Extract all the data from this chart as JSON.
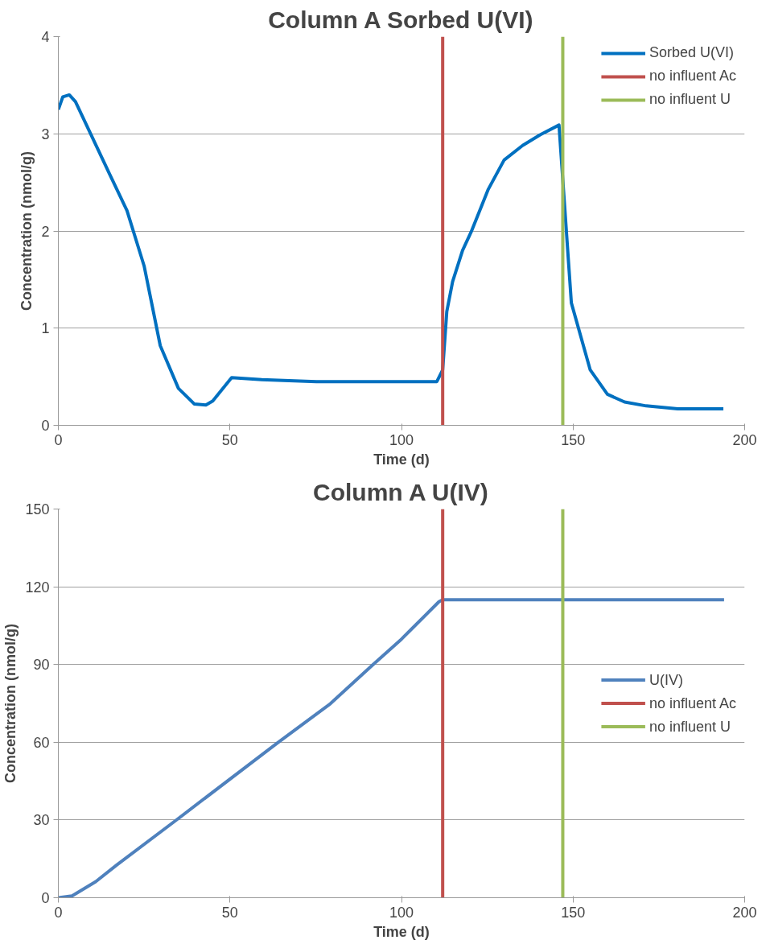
{
  "chart_data": [
    {
      "type": "line",
      "title": "Column A Sorbed U(VI)",
      "xlabel": "Time (d)",
      "ylabel": "Concentration (nmol/g)",
      "xlim": [
        0,
        200
      ],
      "xticks": [
        0,
        50,
        100,
        150,
        200
      ],
      "ylim": [
        0,
        4
      ],
      "yticks": [
        0,
        1,
        2,
        3,
        4
      ],
      "grid": "y",
      "legend": "top right",
      "line_style": "solid",
      "marker": "none",
      "series": [
        {
          "name": "Sorbed U(VI)",
          "color": "#0070c0",
          "x": [
            0,
            1.3,
            3.2,
            5,
            15,
            20,
            25,
            29.7,
            35,
            39.6,
            43,
            45,
            50.5,
            59.3,
            75.2,
            110.3,
            112,
            113.2,
            114.9,
            117.8,
            120.3,
            125.3,
            129.9,
            135.3,
            140.4,
            145.9,
            149.5,
            155,
            160,
            165,
            171.3,
            180.5,
            193.8
          ],
          "values": [
            3.25,
            3.38,
            3.4,
            3.33,
            2.58,
            2.21,
            1.64,
            0.82,
            0.38,
            0.22,
            0.21,
            0.25,
            0.49,
            0.47,
            0.45,
            0.45,
            0.57,
            1.17,
            1.48,
            1.8,
            1.99,
            2.43,
            2.73,
            2.88,
            2.99,
            3.09,
            1.26,
            0.57,
            0.32,
            0.24,
            0.2,
            0.17,
            0.17
          ]
        },
        {
          "name": "no influent Ac",
          "color": "#c0504d",
          "x": [
            112,
            112
          ],
          "values": [
            0,
            4
          ]
        },
        {
          "name": "no influent U",
          "color": "#9bbb59",
          "x": [
            147,
            147
          ],
          "values": [
            0,
            4
          ]
        }
      ]
    },
    {
      "type": "line",
      "title": "Column A U(IV)",
      "xlabel": "Time (d)",
      "ylabel": "Concentration (nmol/g)",
      "xlim": [
        0,
        200
      ],
      "xticks": [
        0,
        50,
        100,
        150,
        200
      ],
      "ylim": [
        0,
        150
      ],
      "yticks": [
        0,
        30,
        60,
        90,
        120,
        150
      ],
      "grid": "y",
      "legend": "right",
      "line_style": "solid",
      "marker": "none",
      "series": [
        {
          "name": "U(IV)",
          "color": "#4f81bd",
          "x": [
            0,
            4,
            10.9,
            17,
            34.3,
            63.7,
            79.3,
            91.4,
            100,
            110.9,
            112,
            194
          ],
          "values": [
            0,
            0.7,
            6.2,
            12.6,
            29.9,
            59.6,
            74.9,
            89.6,
            99.8,
            114.2,
            115,
            115
          ]
        },
        {
          "name": "no influent Ac",
          "color": "#c0504d",
          "x": [
            112,
            112
          ],
          "values": [
            0,
            150
          ]
        },
        {
          "name": "no influent U",
          "color": "#9bbb59",
          "x": [
            147,
            147
          ],
          "values": [
            0,
            150
          ]
        }
      ]
    }
  ]
}
